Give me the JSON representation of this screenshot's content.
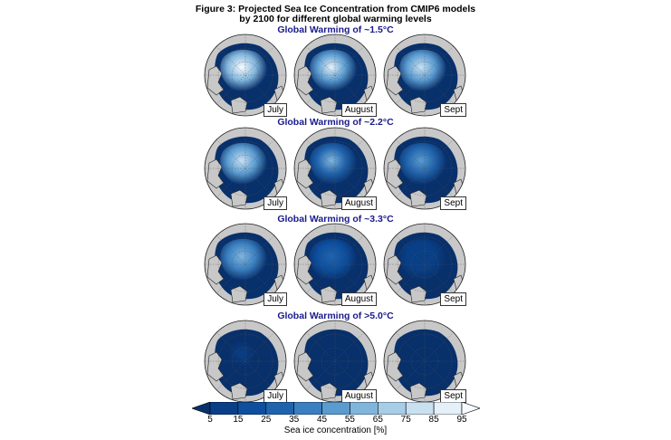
{
  "figure": {
    "title_line1": "Figure 3: Projected Sea Ice Concentration from CMIP6 models",
    "title_line2": "by 2100 for different global warming levels"
  },
  "rows": [
    {
      "label": "Global Warming of ~1.5°C",
      "levels": [
        0.95,
        0.85,
        0.8
      ]
    },
    {
      "label": "Global Warming of ~2.2°C",
      "levels": [
        0.8,
        0.55,
        0.45
      ]
    },
    {
      "label": "Global Warming of ~3.3°C",
      "levels": [
        0.6,
        0.25,
        0.1
      ]
    },
    {
      "label": "Global Warming of >5.0°C",
      "levels": [
        0.05,
        0.03,
        0.02
      ]
    }
  ],
  "months": [
    "July",
    "August",
    "Sept"
  ],
  "colorbar": {
    "ticks": [
      "5",
      "15",
      "25",
      "35",
      "45",
      "55",
      "65",
      "75",
      "85",
      "95"
    ],
    "title": "Sea ice concentration [%]",
    "colors": [
      "#08306b",
      "#083f86",
      "#0d4f9e",
      "#1f63ad",
      "#3a7fc0",
      "#5a9bd0",
      "#80b5dc",
      "#a7cde7",
      "#c9e0f1",
      "#e6f0f9",
      "#f7fbff"
    ]
  }
}
